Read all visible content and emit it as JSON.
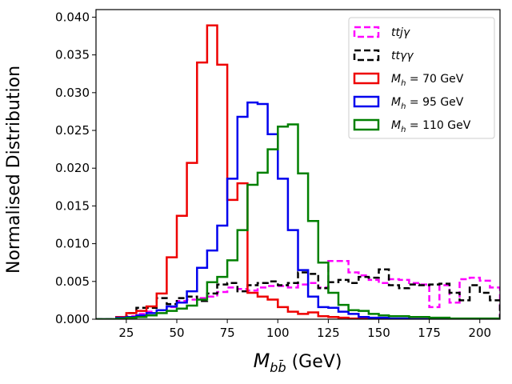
{
  "chart_data": {
    "type": "line",
    "style": "step-histogram",
    "title": "",
    "xlabel": "$M_{b\\bar{b}}$ (GeV)",
    "xlabel_main": "M",
    "xlabel_sub": "bb̄",
    "xlabel_unit": " (GeV)",
    "ylabel": "Normalised Distribution",
    "xlim": [
      10,
      210
    ],
    "ylim": [
      0,
      0.041
    ],
    "xticks": [
      25,
      50,
      75,
      100,
      125,
      150,
      175,
      200
    ],
    "xtick_labels": [
      "25",
      "50",
      "75",
      "100",
      "125",
      "150",
      "175",
      "200"
    ],
    "yticks": [
      0,
      0.005,
      0.01,
      0.015,
      0.02,
      0.025,
      0.03,
      0.035,
      0.04
    ],
    "ytick_labels": [
      "0.000",
      "0.005",
      "0.010",
      "0.015",
      "0.020",
      "0.025",
      "0.030",
      "0.035",
      "0.040"
    ],
    "grid": false,
    "legend_location": "top-right",
    "bin_edges": [
      10,
      15,
      20,
      25,
      30,
      35,
      40,
      45,
      50,
      55,
      60,
      65,
      70,
      75,
      80,
      85,
      90,
      95,
      100,
      105,
      110,
      115,
      120,
      125,
      130,
      135,
      140,
      145,
      150,
      155,
      160,
      165,
      170,
      175,
      180,
      185,
      190,
      195,
      200,
      205,
      210
    ],
    "series": [
      {
        "name": "ttjγ",
        "legend_label": "ttjγ",
        "color": "#ff00ff",
        "dashed": true,
        "values": [
          0.0,
          0.0,
          0.0002,
          0.0004,
          0.0007,
          0.001,
          0.0012,
          0.0016,
          0.0024,
          0.0026,
          0.0028,
          0.003,
          0.0036,
          0.0042,
          0.004,
          0.0038,
          0.0042,
          0.0044,
          0.0044,
          0.0042,
          0.0046,
          0.0048,
          0.0042,
          0.0077,
          0.0077,
          0.0062,
          0.0058,
          0.0052,
          0.0048,
          0.0053,
          0.0052,
          0.0048,
          0.0046,
          0.0016,
          0.0045,
          0.0022,
          0.0053,
          0.0055,
          0.0051,
          0.0042
        ]
      },
      {
        "name": "ttγγ",
        "legend_label": "ttγγ",
        "color": "#000000",
        "dashed": true,
        "values": [
          0.0,
          0.0,
          0.0003,
          0.0008,
          0.0015,
          0.0015,
          0.0028,
          0.002,
          0.0028,
          0.003,
          0.0024,
          0.0034,
          0.0046,
          0.0048,
          0.0037,
          0.0045,
          0.0048,
          0.005,
          0.0045,
          0.0048,
          0.0062,
          0.006,
          0.0041,
          0.0049,
          0.0052,
          0.0048,
          0.0056,
          0.0055,
          0.0066,
          0.0045,
          0.0041,
          0.0046,
          0.0045,
          0.0046,
          0.0047,
          0.0035,
          0.0025,
          0.0045,
          0.0035,
          0.0025
        ]
      },
      {
        "name": "Mh=70 GeV",
        "legend_label": "M_h = 70 GeV",
        "legend_label_main": "M",
        "legend_label_sub": "h",
        "legend_label_rest": " = 70  GeV",
        "color": "#ee0000",
        "dashed": false,
        "values": [
          0.0,
          0.0,
          0.0003,
          0.0008,
          0.0011,
          0.0017,
          0.0034,
          0.0082,
          0.0137,
          0.0207,
          0.034,
          0.0389,
          0.0337,
          0.0158,
          0.018,
          0.0035,
          0.003,
          0.0026,
          0.0016,
          0.001,
          0.0007,
          0.0009,
          0.0004,
          0.0003,
          0.0002,
          0.0001,
          0.0001,
          0.0,
          0.0,
          0.0,
          0.0,
          0.0,
          0.0,
          0.0,
          0.0,
          0.0,
          0.0,
          0.0,
          0.0,
          0.0
        ]
      },
      {
        "name": "Mh=95 GeV",
        "legend_label": "M_h = 95 GeV",
        "legend_label_main": "M",
        "legend_label_sub": "h",
        "legend_label_rest": " = 95  GeV",
        "color": "#0000ee",
        "dashed": false,
        "values": [
          0.0,
          0.0,
          0.0002,
          0.0003,
          0.0005,
          0.0008,
          0.0012,
          0.0017,
          0.0022,
          0.0037,
          0.0068,
          0.0091,
          0.0124,
          0.0186,
          0.0268,
          0.0287,
          0.0285,
          0.0245,
          0.0186,
          0.0118,
          0.0065,
          0.003,
          0.0016,
          0.0015,
          0.001,
          0.0007,
          0.0003,
          0.0002,
          0.0002,
          0.0001,
          0.0001,
          0.0,
          0.0,
          0.0,
          0.0,
          0.0,
          0.0,
          0.0,
          0.0,
          0.0
        ]
      },
      {
        "name": "Mh=110 GeV",
        "legend_label": "M_h = 110 GeV",
        "legend_label_main": "M",
        "legend_label_sub": "h",
        "legend_label_rest": " = 110  GeV",
        "color": "#008000",
        "dashed": false,
        "values": [
          0.0,
          0.0,
          0.0001,
          0.0002,
          0.0003,
          0.0005,
          0.0008,
          0.0011,
          0.0014,
          0.0018,
          0.0026,
          0.0049,
          0.0056,
          0.0078,
          0.0118,
          0.0178,
          0.0194,
          0.0225,
          0.0255,
          0.0258,
          0.0193,
          0.013,
          0.0075,
          0.0035,
          0.0019,
          0.0012,
          0.0011,
          0.0007,
          0.0005,
          0.0004,
          0.0004,
          0.0003,
          0.0003,
          0.0002,
          0.0002,
          0.0001,
          0.0001,
          0.0001,
          0.0001,
          0.0001
        ]
      }
    ]
  }
}
